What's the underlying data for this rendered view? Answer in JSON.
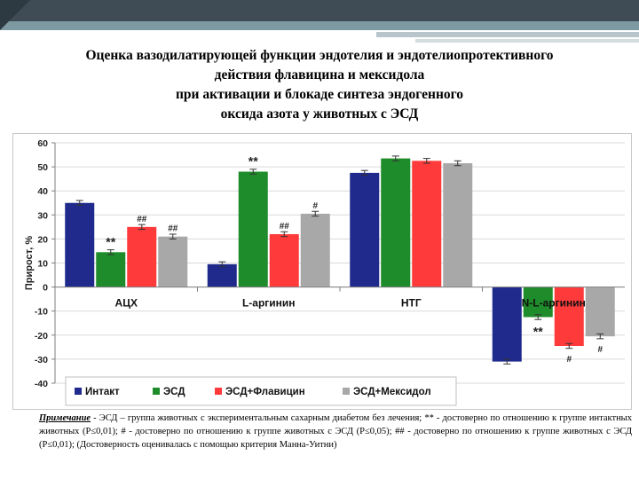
{
  "title_lines": [
    "Оценка вазодилатирующей функции эндотелия и эндотелиопротективного",
    "действия флавицина и мексидола",
    "при активации и блокаде синтеза эндогенного",
    "оксида азота у животных с ЭСД"
  ],
  "chart_data": {
    "type": "bar",
    "ylabel": "Прирост, %",
    "ylim": [
      -40,
      60
    ],
    "yticks": [
      -40,
      -30,
      -20,
      -10,
      0,
      10,
      20,
      30,
      40,
      50,
      60
    ],
    "grid": true,
    "legend_position": "bottom-left",
    "categories": [
      "АЦХ",
      "L-аргинин",
      "НТГ",
      "N-L-аргинин"
    ],
    "series": [
      {
        "name": "Интакт",
        "color": "#1f2a8c",
        "values": [
          35,
          9.5,
          47.5,
          -31
        ],
        "errors": [
          1,
          1,
          1,
          1
        ],
        "markers": [
          "",
          "",
          "",
          ""
        ]
      },
      {
        "name": "ЭСД",
        "color": "#1e8c2a",
        "values": [
          14.5,
          48,
          53.5,
          -12.5
        ],
        "errors": [
          1,
          1,
          1,
          1
        ],
        "markers": [
          "**",
          "**",
          "",
          "**"
        ]
      },
      {
        "name": "ЭСД+Флавицин",
        "color": "#ff3a3a",
        "values": [
          25,
          22,
          52.5,
          -24.5
        ],
        "errors": [
          1,
          1,
          1,
          1
        ],
        "markers": [
          "##",
          "##",
          "",
          "#"
        ]
      },
      {
        "name": "ЭСД+Мексидол",
        "color": "#a8a8a8",
        "values": [
          21,
          30.5,
          51.5,
          -20.5
        ],
        "errors": [
          1,
          1,
          1,
          1
        ],
        "markers": [
          "##",
          "#",
          "",
          "#"
        ]
      }
    ]
  },
  "note": {
    "label": "Примечание",
    "text": " - ЭСД – группа животных с экспериментальным сахарным диабетом без лечения; ** - достоверно по отношению к группе интактных животных (Р≤0,01); # - достоверно по отношению к группе животных с ЭСД (Р≤0,05); ## - достоверно по отношению к группе животных с ЭСД (Р≤0,01); (Достоверность оценивалась с помощью критерия Манна-Уитни)"
  }
}
